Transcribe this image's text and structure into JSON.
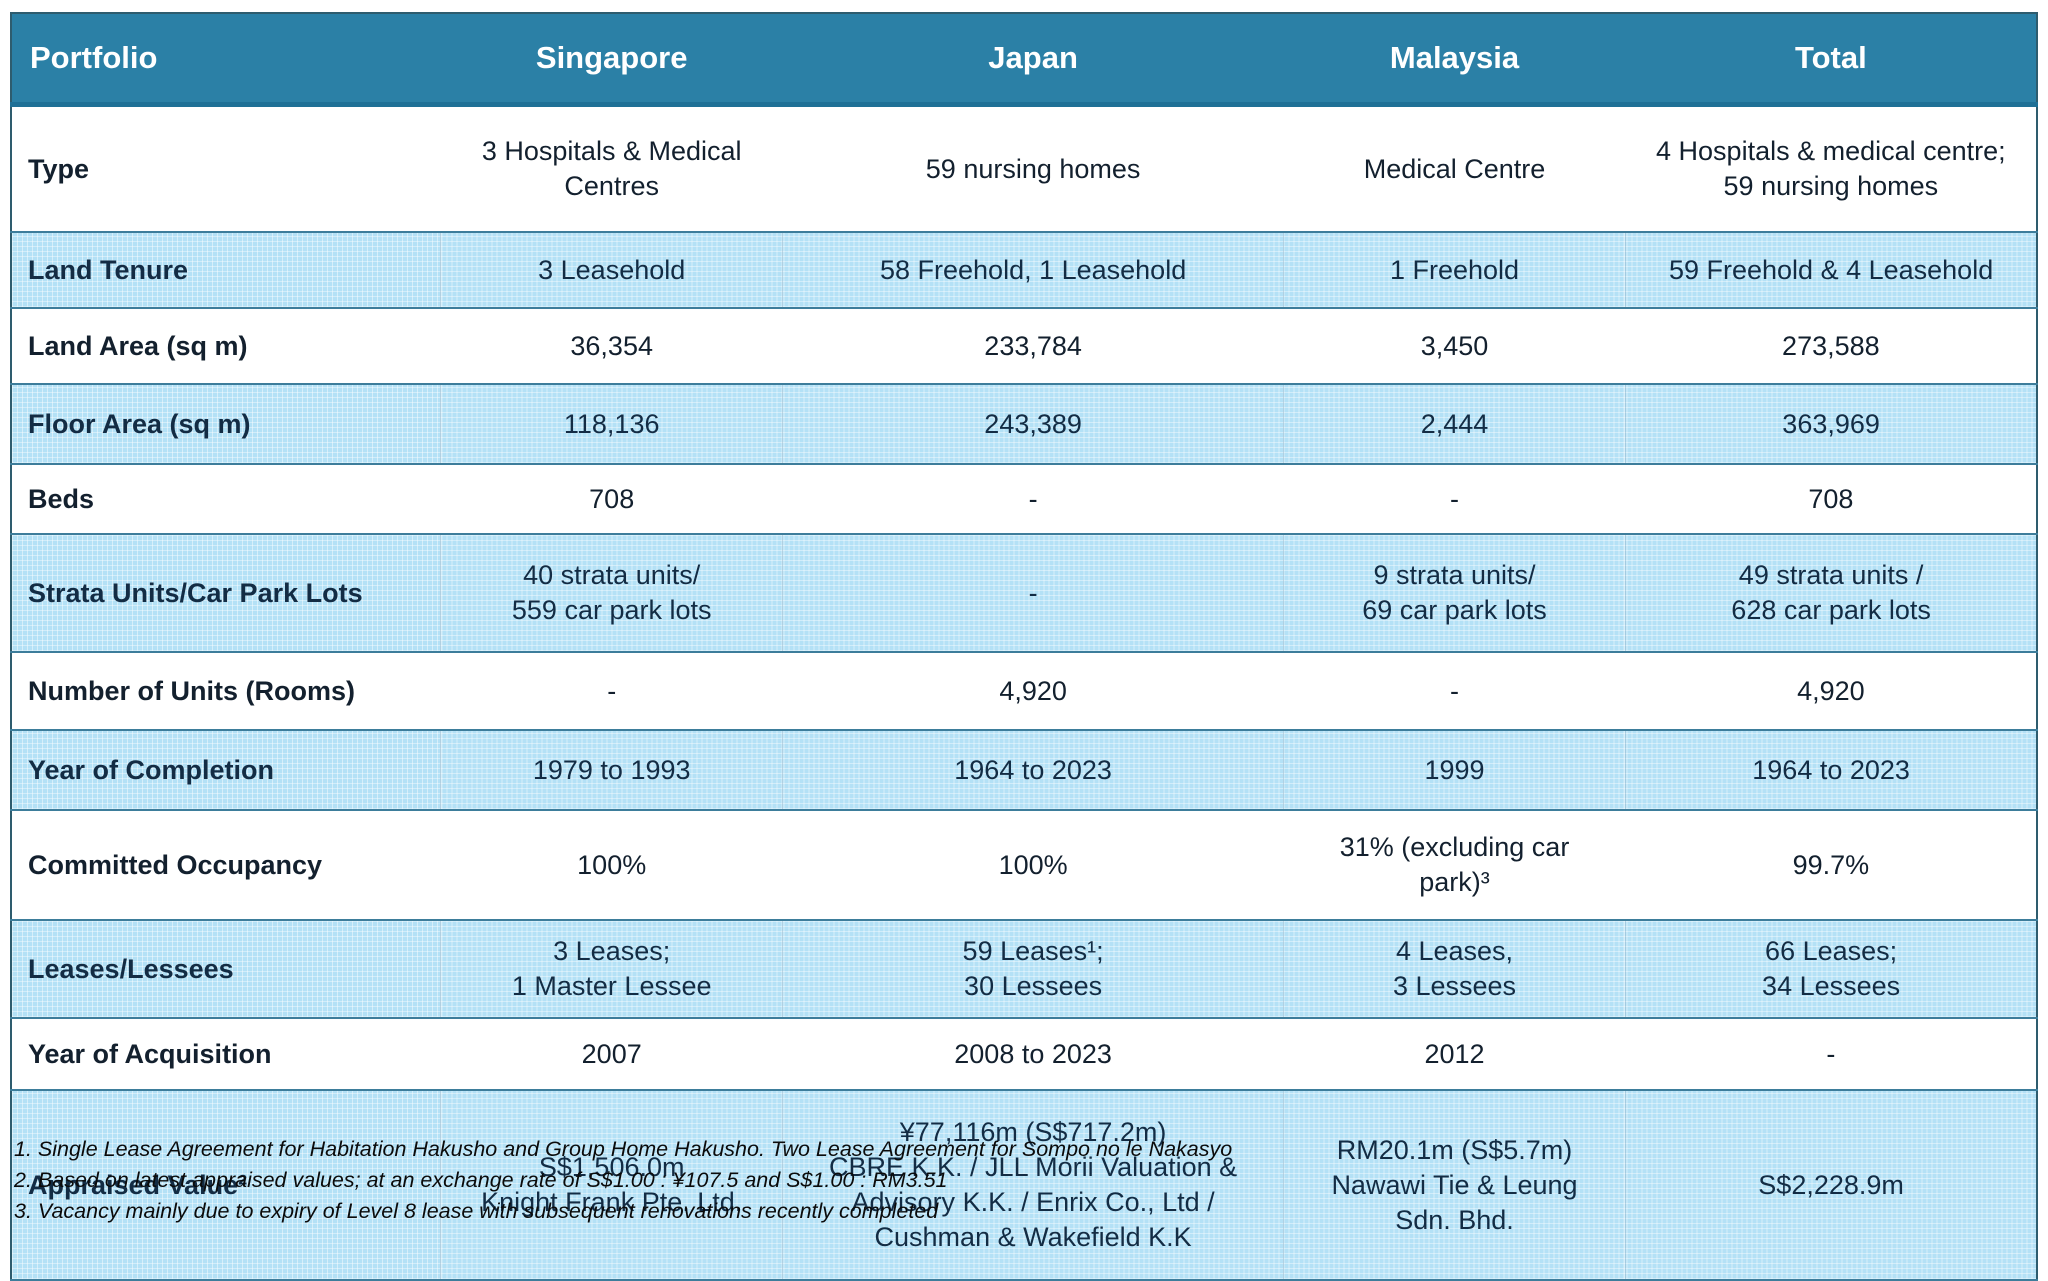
{
  "colors": {
    "header_bg": "#2b80a6",
    "header_text": "#ffffff",
    "shaded_row_bg": "#b4e1f6",
    "border_dark": "#2e5c6e",
    "body_text": "#13202e"
  },
  "table": {
    "columns": [
      {
        "label": "Portfolio"
      },
      {
        "label": "Singapore"
      },
      {
        "label": "Japan"
      },
      {
        "label": "Malaysia"
      },
      {
        "label": "Total"
      }
    ],
    "rows": [
      {
        "label": "Type",
        "shaded": false,
        "values": [
          "3 Hospitals & Medical\nCentres",
          "59 nursing homes",
          "Medical Centre",
          "4 Hospitals & medical centre;\n59 nursing homes"
        ]
      },
      {
        "label": "Land Tenure",
        "shaded": true,
        "values": [
          "3 Leasehold",
          "58 Freehold, 1 Leasehold",
          "1 Freehold",
          "59 Freehold & 4 Leasehold"
        ]
      },
      {
        "label": "Land Area (sq m)",
        "shaded": false,
        "values": [
          "36,354",
          "233,784",
          "3,450",
          "273,588"
        ]
      },
      {
        "label": "Floor Area (sq m)",
        "shaded": true,
        "values": [
          "118,136",
          "243,389",
          "2,444",
          "363,969"
        ]
      },
      {
        "label": "Beds",
        "shaded": false,
        "values": [
          "708",
          "-",
          "-",
          "708"
        ]
      },
      {
        "label": "Strata Units/Car Park Lots",
        "shaded": true,
        "values": [
          "40 strata units/\n559 car park lots",
          "-",
          "9 strata units/\n69 car park lots",
          "49 strata units /\n628 car park lots"
        ]
      },
      {
        "label": "Number of Units (Rooms)",
        "shaded": false,
        "values": [
          "-",
          "4,920",
          "-",
          "4,920"
        ]
      },
      {
        "label": "Year of Completion",
        "shaded": true,
        "values": [
          "1979 to 1993",
          "1964 to 2023",
          "1999",
          "1964 to 2023"
        ]
      },
      {
        "label": "Committed Occupancy",
        "shaded": false,
        "values": [
          "100%",
          "100%",
          "31% (excluding car\npark)³",
          "99.7%"
        ]
      },
      {
        "label": "Leases/Lessees",
        "shaded": true,
        "values": [
          "3 Leases;\n1 Master Lessee",
          "59 Leases¹;\n30 Lessees",
          "4 Leases,\n3 Lessees",
          "66 Leases;\n34 Lessees"
        ]
      },
      {
        "label": "Year of Acquisition",
        "shaded": false,
        "values": [
          "2007",
          "2008 to 2023",
          "2012",
          "-"
        ]
      },
      {
        "label": "Appraised Value²",
        "shaded": true,
        "values": [
          "S$1,506.0m\nKnight Frank Pte. Ltd.",
          "¥77,116m (S$717.2m)\nCBRE K.K. / JLL Morii Valuation &\nAdvisory K.K. / Enrix Co., Ltd /\nCushman & Wakefield K.K",
          "RM20.1m (S$5.7m)\nNawawi Tie & Leung\nSdn. Bhd.",
          "S$2,228.9m"
        ]
      }
    ]
  },
  "footnotes": [
    "1. Single Lease Agreement for Habitation Hakusho and Group Home Hakusho. Two Lease Agreement for Sompo no le Nakasyo",
    "2. Based on latest appraised values;  at an exchange rate of S$1.00 : ¥107.5 and S$1.00 : RM3.51",
    "3. Vacancy mainly due to expiry of Level 8 lease with subsequent renovations recently completed"
  ]
}
